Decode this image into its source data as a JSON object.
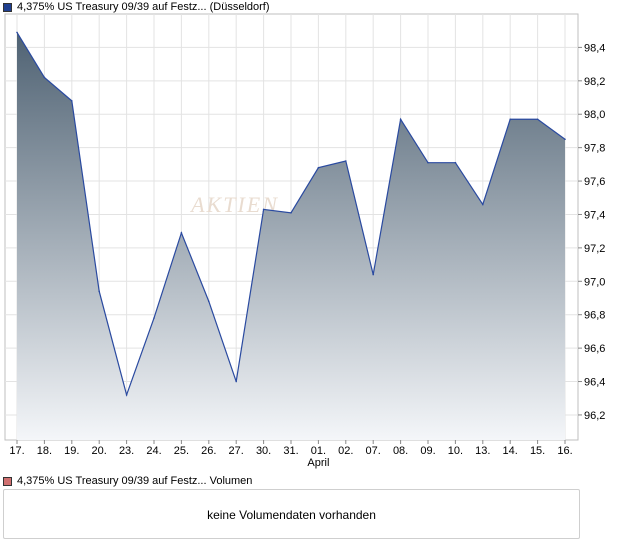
{
  "legend": {
    "price_label": "4,375% US Treasury 09/39 auf Festz... (Düsseldorf)",
    "price_color": "#1f3f8f",
    "volume_label": "4,375% US Treasury 09/39 auf Festz... Volumen",
    "volume_color": "#d07070"
  },
  "volume_panel": {
    "message": "keine Volumendaten vorhanden"
  },
  "watermark": {
    "text": "AKTIEN"
  },
  "chart_data": {
    "type": "area",
    "title": "",
    "xlabel": "",
    "ylabel": "",
    "x": [
      "17.",
      "18.",
      "19.",
      "20.",
      "23.",
      "24.",
      "25.",
      "26.",
      "27.",
      "30.",
      "31.",
      "01.",
      "02.",
      "07.",
      "08.",
      "09.",
      "10.",
      "13.",
      "14.",
      "15.",
      "16."
    ],
    "x_sublabel": {
      "index": 11,
      "text": "April"
    },
    "values": [
      98.49,
      98.22,
      98.08,
      96.94,
      96.32,
      96.78,
      97.29,
      96.88,
      96.4,
      97.43,
      97.41,
      97.68,
      97.72,
      97.04,
      97.97,
      97.71,
      97.71,
      97.46,
      97.97,
      97.97,
      97.85
    ],
    "yticks": [
      96.2,
      96.4,
      96.6,
      96.8,
      97.0,
      97.2,
      97.4,
      97.6,
      97.8,
      98.0,
      98.2,
      98.4
    ],
    "ytick_labels": [
      "96,2",
      "96,4",
      "96,6",
      "96,8",
      "97,0",
      "97,2",
      "97,4",
      "97,6",
      "97,8",
      "98,0",
      "98,2",
      "98,4"
    ],
    "ylim": [
      96.05,
      98.6
    ],
    "grid": true,
    "line_color": "#2a4aa0",
    "fill_top_color": "#4f6273",
    "fill_bottom_color": "#f4f6f9"
  }
}
